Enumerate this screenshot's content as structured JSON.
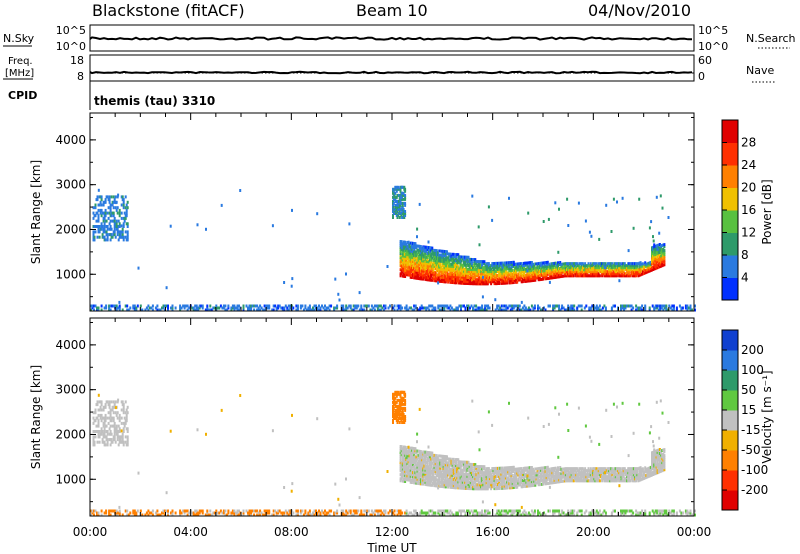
{
  "header": {
    "station": "Blackstone (fitACF)",
    "beam": "Beam 10",
    "date": "04/Nov/2010"
  },
  "top_panels": {
    "nsky_label": "N.Sky",
    "nsky_ticks": [
      "10^5",
      "10^0"
    ],
    "nsearch_label": "N.Search",
    "nsearch_ticks": [
      "10^5",
      "10^0"
    ],
    "freq_label_1": "Freq.",
    "freq_label_2": "[MHz]",
    "freq_ticks": [
      "18",
      "8"
    ],
    "nave_label": "Nave",
    "nave_ticks": [
      "60",
      "0"
    ],
    "cpid_label": "CPID",
    "cpid_value": "themis (tau) 3310"
  },
  "chart_data": [
    {
      "type": "heatmap",
      "panel": "power",
      "ylabel": "Slant Range [km]",
      "xlabel": "",
      "x_range_hours": [
        0,
        24
      ],
      "ylim": [
        180,
        4600
      ],
      "y_ticks": [
        1000,
        2000,
        3000,
        4000
      ],
      "colorbar": {
        "label": "Power [dB]",
        "ticks": [
          4,
          8,
          12,
          16,
          20,
          24,
          28
        ],
        "range": [
          0,
          32
        ],
        "colors": [
          "#0030ff",
          "#2a7ae0",
          "#2e9a6a",
          "#58c040",
          "#f0c000",
          "#ff8000",
          "#ff3000",
          "#e00000"
        ]
      },
      "features": [
        {
          "hours": [
            12.3,
            22.8
          ],
          "range_km": [
            900,
            1400
          ],
          "power_db": 24
        },
        {
          "hours": [
            0.2,
            1.5
          ],
          "range_km": [
            1800,
            2800
          ],
          "power_db": 6
        },
        {
          "hours": [
            12.0,
            12.5
          ],
          "range_km": [
            2400,
            3000
          ],
          "power_db": 8
        },
        {
          "hours": [
            0,
            24
          ],
          "range_km": [
            180,
            300
          ],
          "power_db": 5
        }
      ]
    },
    {
      "type": "heatmap",
      "panel": "velocity",
      "ylabel": "Slant Range [km]",
      "xlabel": "Time UT",
      "x_ticks": [
        "00:00",
        "04:00",
        "08:00",
        "12:00",
        "16:00",
        "20:00",
        "00:00"
      ],
      "ylim": [
        180,
        4600
      ],
      "y_ticks": [
        1000,
        2000,
        3000,
        4000
      ],
      "colorbar": {
        "label": "Velocity [m s⁻¹]",
        "ticks": [
          200,
          100,
          50,
          15,
          -15,
          -50,
          -100,
          -200
        ],
        "colors": [
          "#1040d0",
          "#2a7ae0",
          "#2e9a6a",
          "#60c840",
          "#c0c0c0",
          "#f0b000",
          "#ff8000",
          "#ff3000",
          "#e00000"
        ]
      },
      "features": [
        {
          "hours": [
            12.3,
            22.8
          ],
          "range_km": [
            900,
            1500
          ],
          "velocity": 0
        },
        {
          "hours": [
            12.0,
            12.5
          ],
          "range_km": [
            2300,
            2800
          ],
          "velocity": -60
        },
        {
          "hours": [
            0,
            12
          ],
          "range_km": [
            180,
            320
          ],
          "velocity": -50
        }
      ]
    }
  ]
}
